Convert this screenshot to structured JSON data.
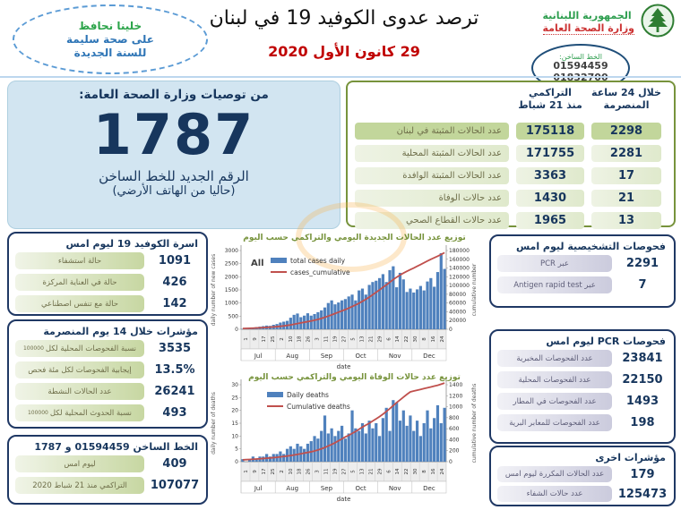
{
  "header": {
    "bubble": {
      "line1": "خلينا نحافظ",
      "line2": "على صحة سليمة",
      "line3": "للسنة الجديدة"
    },
    "title": "ترصد عدوى الكوفيد 19 في لبنان",
    "date": "29 كانون الأول 2020",
    "ministry": {
      "name_line1": "الجمهورية اللبنانية",
      "name_line2": "وزارة الصحة العامة",
      "hotline_label": "الخط الساخن:",
      "hotline1": "01594459",
      "hotline2": "01832700"
    }
  },
  "big_panel": {
    "title": "من توصيات وزارة الصحة العامة:",
    "number": "1787",
    "caption1": "الرقم الجديد للخط الساخن",
    "caption2": "(حاليا من الهاتف الأرضي)"
  },
  "summary_table": {
    "col_cum": "التراكمي\nمنذ 21 شباط",
    "col_24h": "خلال 24 ساعة\nالمنصرمة",
    "rows": [
      {
        "label": "عدد الحالات المثبتة في لبنان",
        "cumulative": "175118",
        "last24h": "2298"
      },
      {
        "label": "عدد الحالات المثبتة المحلية",
        "cumulative": "171755",
        "last24h": "2281"
      },
      {
        "label": "عدد الحالات المثبتة الوافدة",
        "cumulative": "3363",
        "last24h": "17"
      },
      {
        "label": "عدد حالات الوفاة",
        "cumulative": "1430",
        "last24h": "21"
      },
      {
        "label": "عدد حالات القطاع الصحي",
        "cumulative": "1965",
        "last24h": "13"
      }
    ]
  },
  "left_panels": [
    {
      "title": "اسرة الكوفيد 19 ليوم امس",
      "rows": [
        {
          "label": "حالة استشفاء",
          "value": "1091"
        },
        {
          "label": "حالة في العناية المركزة",
          "value": "426"
        },
        {
          "label": "حالة مع تنفس اصطناعي",
          "value": "142"
        }
      ]
    },
    {
      "title": "مؤشرات خلال 14 يوم المنصرمة",
      "rows": [
        {
          "label": "نسبة الفحوصات المحلية لكل",
          "sub": "100000",
          "value": "3535"
        },
        {
          "label": "إيجابية الفحوصات لكل مئة فحص",
          "value": "13.5%"
        },
        {
          "label": "عدد الحالات النشطة",
          "value": "26241"
        },
        {
          "label": "نسبة الحدوث المحلية لكل",
          "sub": "100000",
          "value": "493"
        }
      ]
    },
    {
      "title": "الخط الساخن 01594459 و 1787",
      "rows": [
        {
          "label": "ليوم امس",
          "value": "409"
        },
        {
          "label": "التراكمي منذ 21 شباط 2020",
          "value": "107077"
        }
      ]
    }
  ],
  "right_panels": [
    {
      "title": "فحوصات التشخيصية ليوم امس",
      "rows": [
        {
          "label": "عبر PCR",
          "value": "2291"
        },
        {
          "label": "عبر Antigen rapid test",
          "value": "7"
        }
      ]
    },
    {
      "title": "فحوصات PCR ليوم امس",
      "rows": [
        {
          "label": "عدد الفحوصات المخبرية",
          "value": "23841"
        },
        {
          "label": "عدد الفحوصات المحلية",
          "value": "22150"
        },
        {
          "label": "عدد الفحوصات في المطار",
          "value": "1493"
        },
        {
          "label": "عدد الفحوصات للمعابر البرية",
          "value": "198"
        }
      ]
    },
    {
      "title": "مؤشرات اخرى",
      "rows": [
        {
          "label": "عدد الحالات المكررة ليوم امس",
          "value": "179"
        },
        {
          "label": "عدد حالات الشفاء",
          "value": "125473"
        }
      ]
    }
  ],
  "chart_data": [
    {
      "type": "bar",
      "name": "daily-and-cumulative-cases",
      "title": "توزيع عدد الحالات الجديدة اليومي والتراكمي حسب اليوم",
      "legend_all": "All",
      "series": [
        {
          "name": "total cases daily",
          "kind": "bar",
          "color": "#4f81bd",
          "values": [
            15,
            25,
            35,
            60,
            80,
            100,
            120,
            140,
            130,
            170,
            200,
            255,
            290,
            320,
            440,
            550,
            600,
            460,
            520,
            610,
            520,
            580,
            650,
            720,
            830,
            1000,
            1100,
            950,
            1020,
            1100,
            1150,
            1250,
            1320,
            1100,
            1480,
            1550,
            1320,
            1690,
            1800,
            1850,
            1950,
            2100,
            1800,
            2250,
            2400,
            1600,
            2150,
            1900,
            1420,
            1550,
            1400,
            1520,
            1650,
            1480,
            1820,
            1950,
            1620,
            2180,
            2900,
            2300
          ]
        },
        {
          "name": "cases_cumulative",
          "kind": "line",
          "color": "#c0504d",
          "values": [
            1800,
            2000,
            2300,
            2600,
            3000,
            3400,
            3900,
            4400,
            4900,
            5400,
            6000,
            6800,
            7700,
            8800,
            10000,
            11500,
            13000,
            14500,
            16000,
            17500,
            19000,
            20700,
            22600,
            24800,
            27300,
            30000,
            33000,
            36000,
            39000,
            42000,
            45000,
            48500,
            52000,
            55500,
            59500,
            64000,
            68500,
            73500,
            79000,
            84500,
            90000,
            96000,
            101500,
            107500,
            113500,
            119000,
            124000,
            128500,
            132500,
            136500,
            140000,
            144000,
            148000,
            152000,
            156000,
            160000,
            163500,
            167000,
            171000,
            175118
          ]
        }
      ],
      "ylabel_left": "daily number of new cases",
      "ylim_left": [
        0,
        3000
      ],
      "ytick_step_left": 500,
      "ylabel_right": "cumulative number",
      "ylim_right": [
        0,
        180000
      ],
      "ytick_step_right": 20000,
      "xlabel": "date",
      "xticklabels": [
        "1",
        "9",
        "17",
        "25",
        "2",
        "10",
        "18",
        "26",
        "3",
        "11",
        "19",
        "27",
        "5",
        "13",
        "21",
        "29",
        "6",
        "14",
        "22",
        "30",
        "8",
        "16",
        "24"
      ],
      "months": [
        "Jul",
        "Aug",
        "Sep",
        "Oct",
        "Nov",
        "Dec"
      ]
    },
    {
      "type": "bar",
      "name": "daily-and-cumulative-deaths",
      "title": "توزيع عدد حالات  الوفاة اليومي والتراكمي حسب اليوم",
      "legend_all": "",
      "series": [
        {
          "name": "Daily deaths",
          "kind": "bar",
          "color": "#4f81bd",
          "values": [
            1,
            0,
            1,
            2,
            1,
            2,
            2,
            3,
            2,
            3,
            3,
            4,
            3,
            5,
            6,
            5,
            7,
            6,
            5,
            7,
            8,
            10,
            9,
            12,
            18,
            11,
            13,
            10,
            12,
            14,
            9,
            11,
            20,
            13,
            12,
            15,
            11,
            16,
            13,
            15,
            10,
            17,
            21,
            12,
            24,
            23,
            16,
            20,
            14,
            18,
            12,
            16,
            10,
            15,
            20,
            13,
            17,
            22,
            15,
            21
          ]
        },
        {
          "name": "Cumulative deaths",
          "kind": "line",
          "color": "#c0504d",
          "values": [
            35,
            38,
            41,
            45,
            49,
            53,
            58,
            63,
            68,
            74,
            80,
            88,
            95,
            103,
            112,
            122,
            133,
            144,
            156,
            168,
            180,
            196,
            214,
            234,
            258,
            285,
            315,
            345,
            380,
            415,
            450,
            480,
            515,
            550,
            590,
            630,
            665,
            700,
            740,
            780,
            820,
            865,
            915,
            965,
            1020,
            1075,
            1125,
            1175,
            1225,
            1270,
            1285,
            1300,
            1315,
            1330,
            1345,
            1360,
            1375,
            1390,
            1410,
            1430
          ]
        }
      ],
      "ylabel_left": "daily number of deaths",
      "ylim_left": [
        0,
        30
      ],
      "ytick_step_left": 5,
      "ylabel_right": "cumulative number of deaths",
      "ylim_right": [
        0,
        1400
      ],
      "ytick_step_right": 200,
      "xlabel": "date",
      "xticklabels": [
        "1",
        "9",
        "17",
        "25",
        "2",
        "10",
        "18",
        "26",
        "3",
        "11",
        "19",
        "27",
        "5",
        "13",
        "21",
        "29",
        "6",
        "14",
        "22",
        "30",
        "8",
        "16",
        "24"
      ],
      "months": [
        "Jul",
        "Aug",
        "Sep",
        "Oct",
        "Nov",
        "Dec"
      ]
    }
  ],
  "colors": {
    "navy": "#17365d",
    "olive_border": "#77933c",
    "green_cell": "#c2d69b",
    "blue_panel": "#d2e5f1",
    "bar_blue": "#4f81bd",
    "line_red": "#c0504d",
    "date_red": "#c00000",
    "ministry_green": "#2e9e4f",
    "ministry_red": "#cc3333"
  }
}
